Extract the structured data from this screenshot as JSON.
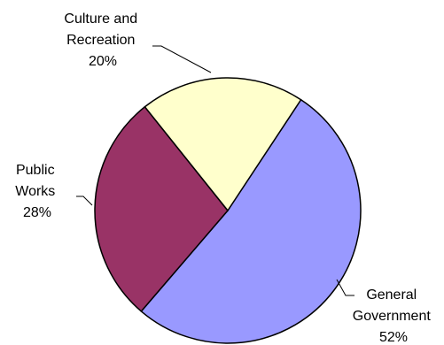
{
  "chart_data": {
    "type": "pie",
    "categories": [
      "General Government",
      "Public Works",
      "Culture and Recreation"
    ],
    "values": [
      52,
      28,
      20
    ],
    "unit": "%",
    "colors": [
      "#9999FF",
      "#993366",
      "#FFFFCC"
    ],
    "labels": [
      {
        "lines": [
          "General",
          "Government",
          "52%"
        ]
      },
      {
        "lines": [
          "Public",
          "Works",
          "28%"
        ]
      },
      {
        "lines": [
          "Culture and",
          "Recreation",
          "20%"
        ]
      }
    ],
    "legend": "none"
  }
}
